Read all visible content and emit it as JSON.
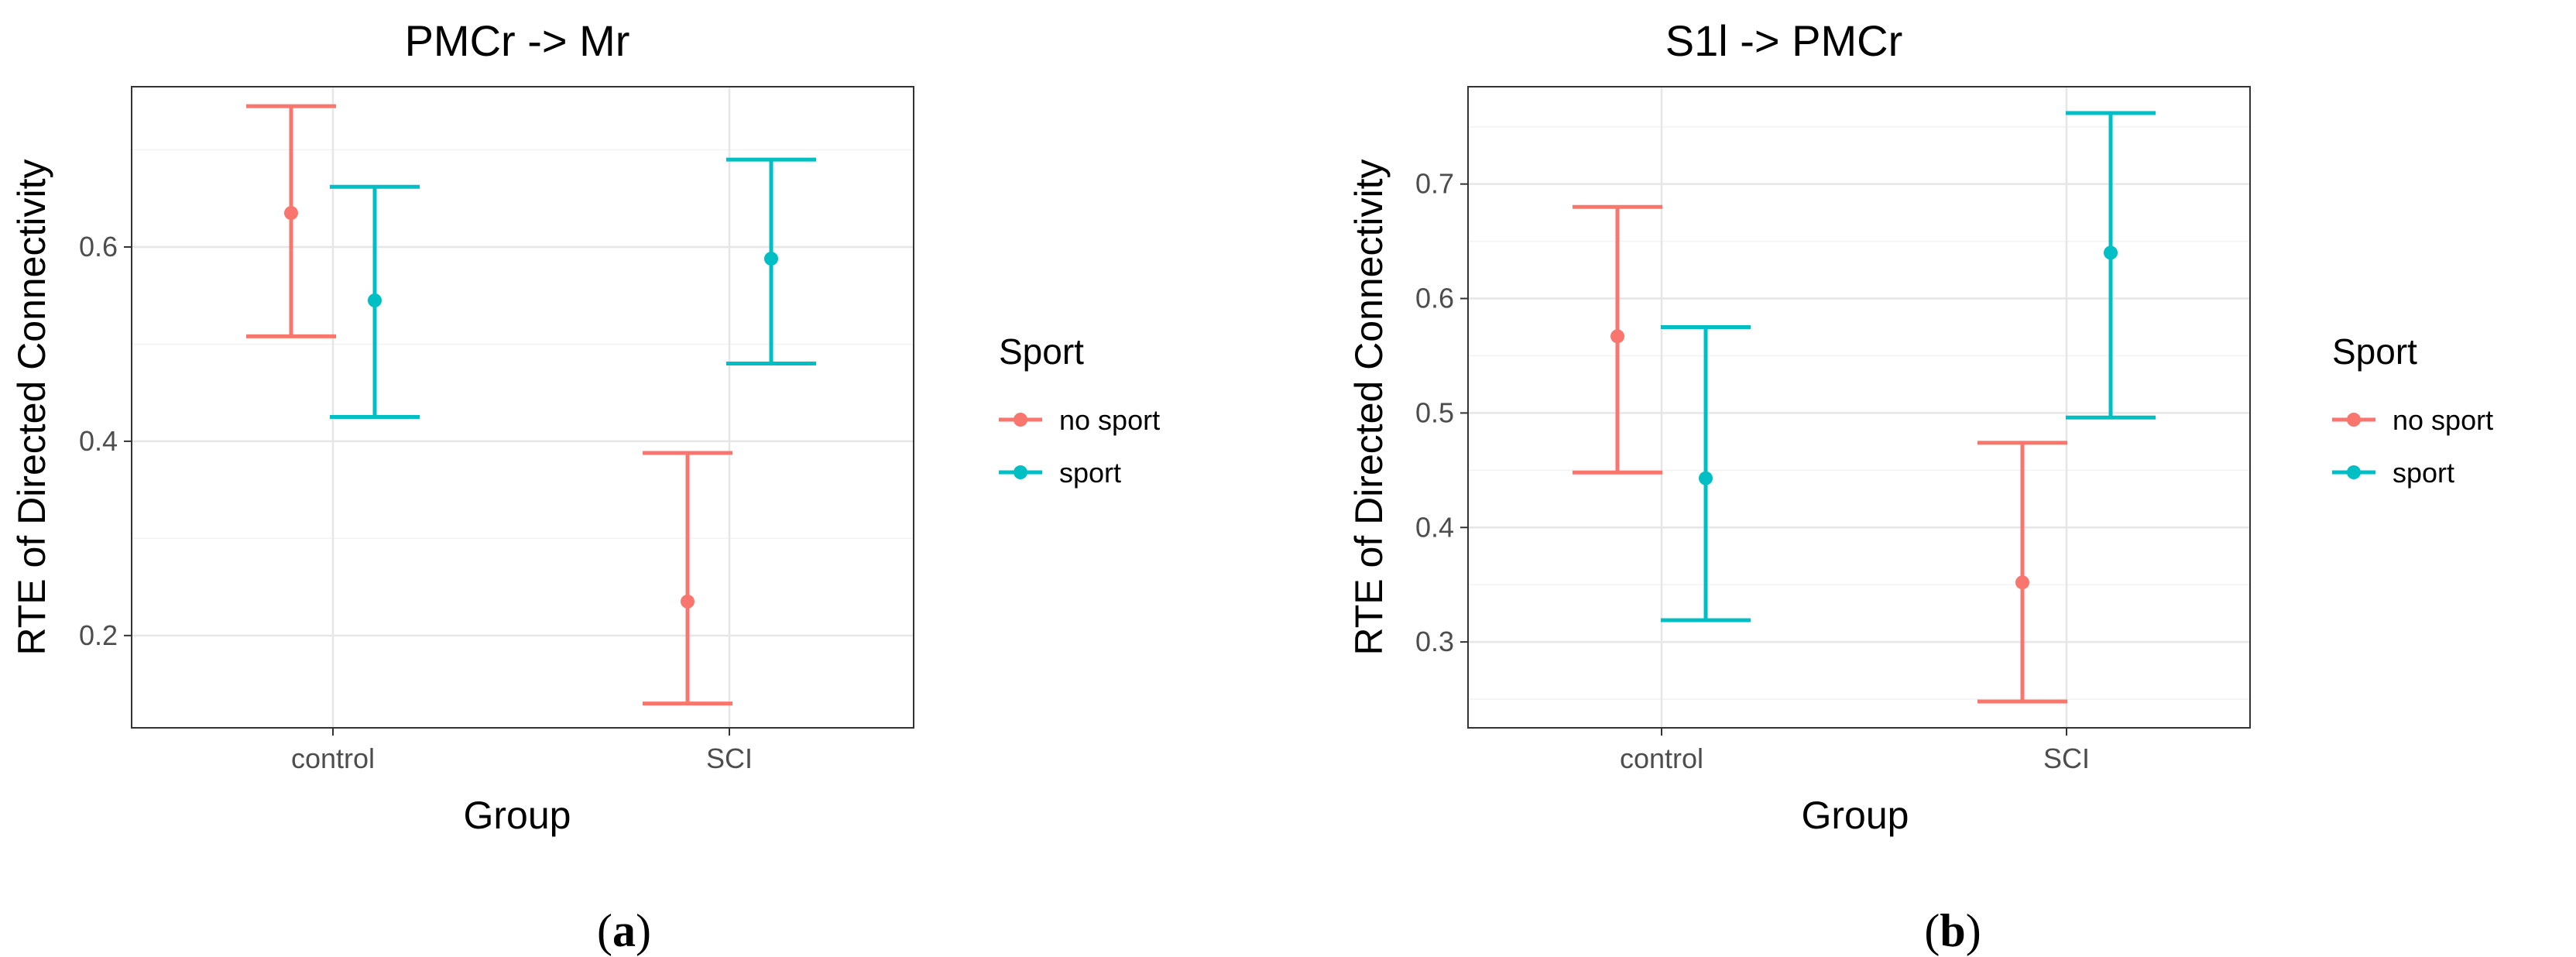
{
  "chart_data": [
    {
      "type": "errorbar",
      "title": "PMCr -> Mr",
      "xlabel": "Group",
      "ylabel": "RTE of Directed Connectivity",
      "categories": [
        "control",
        "SCI"
      ],
      "ylim": [
        0.105,
        0.765
      ],
      "yticks": [
        0.2,
        0.4,
        0.6
      ],
      "ytick_labels": [
        "0.2",
        "0.4",
        "0.6"
      ],
      "grid": true,
      "legend": {
        "title": "Sport",
        "position": "right"
      },
      "caption": {
        "open": "(",
        "letter": "a",
        "close": ")"
      },
      "series": [
        {
          "name": "no sport",
          "color": "#F8766D",
          "points": [
            {
              "x": "control",
              "y": 0.635,
              "lower": 0.508,
              "upper": 0.745
            },
            {
              "x": "SCI",
              "y": 0.235,
              "lower": 0.13,
              "upper": 0.388
            }
          ]
        },
        {
          "name": "sport",
          "color": "#00BFC4",
          "points": [
            {
              "x": "control",
              "y": 0.545,
              "lower": 0.425,
              "upper": 0.662
            },
            {
              "x": "SCI",
              "y": 0.588,
              "lower": 0.48,
              "upper": 0.69
            }
          ]
        }
      ]
    },
    {
      "type": "errorbar",
      "title": "S1l -> PMCr",
      "xlabel": "Group",
      "ylabel": "RTE of Directed Connectivity",
      "categories": [
        "control",
        "SCI"
      ],
      "ylim": [
        0.225,
        0.785
      ],
      "yticks": [
        0.3,
        0.4,
        0.5,
        0.6,
        0.7
      ],
      "ytick_labels": [
        "0.3",
        "0.4",
        "0.5",
        "0.6",
        "0.7"
      ],
      "grid": true,
      "legend": {
        "title": "Sport",
        "position": "right"
      },
      "caption": {
        "open": "(",
        "letter": "b",
        "close": ")"
      },
      "series": [
        {
          "name": "no sport",
          "color": "#F8766D",
          "points": [
            {
              "x": "control",
              "y": 0.567,
              "lower": 0.448,
              "upper": 0.68
            },
            {
              "x": "SCI",
              "y": 0.352,
              "lower": 0.248,
              "upper": 0.474
            }
          ]
        },
        {
          "name": "sport",
          "color": "#00BFC4",
          "points": [
            {
              "x": "control",
              "y": 0.443,
              "lower": 0.319,
              "upper": 0.575
            },
            {
              "x": "SCI",
              "y": 0.64,
              "lower": 0.496,
              "upper": 0.762
            }
          ]
        }
      ]
    }
  ]
}
